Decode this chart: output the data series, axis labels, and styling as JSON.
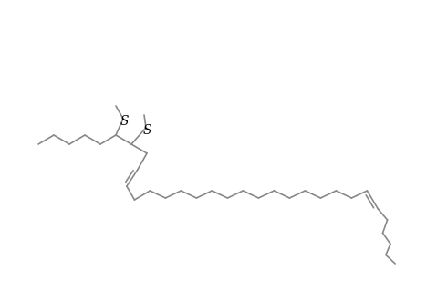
{
  "background": "#ffffff",
  "line_color": "#888888",
  "line_width": 1.2,
  "text_color": "#000000",
  "S_fontsize": 10,
  "Me_fontsize": 8.5
}
